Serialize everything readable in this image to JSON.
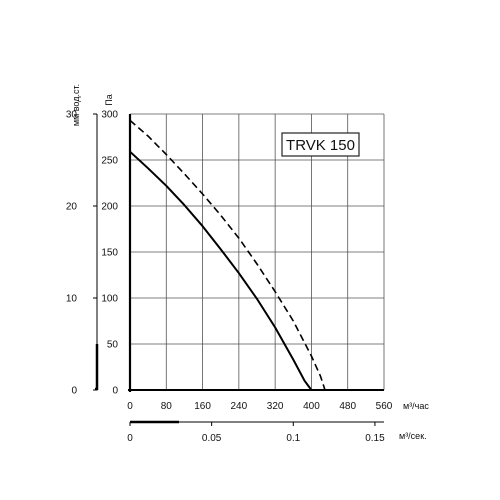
{
  "chart_data": {
    "type": "line",
    "model_label": "TRVK 150",
    "x_axis_primary": {
      "unit": "м³/час",
      "ticks": [
        "0",
        "80",
        "160",
        "240",
        "320",
        "400",
        "480",
        "560"
      ],
      "range": [
        0,
        560
      ]
    },
    "x_axis_secondary": {
      "unit": "м³/сек.",
      "ticks": [
        "0",
        "0.05",
        "0.1",
        "0.15"
      ],
      "values": [
        0,
        0.05,
        0.1,
        0.15
      ]
    },
    "y_axis_primary": {
      "unit": "Па",
      "ticks": [
        "0",
        "50",
        "100",
        "150",
        "200",
        "250",
        "300"
      ],
      "range": [
        0,
        300
      ]
    },
    "y_axis_secondary": {
      "unit": "мм вод.ст.",
      "ticks": [
        "0",
        "10",
        "20",
        "30"
      ],
      "values": [
        0,
        10,
        20,
        30
      ]
    },
    "grid": true,
    "series": [
      {
        "style": "solid",
        "x": [
          0,
          40,
          80,
          120,
          160,
          200,
          240,
          280,
          320,
          360,
          385,
          400
        ],
        "y": [
          259,
          241,
          222,
          201,
          178,
          153,
          127,
          99,
          68,
          33,
          10,
          0
        ]
      },
      {
        "style": "dashed",
        "x": [
          0,
          40,
          80,
          120,
          160,
          200,
          240,
          280,
          320,
          360,
          400,
          420,
          430
        ],
        "y": [
          293,
          276,
          256,
          235,
          213,
          190,
          165,
          137,
          107,
          75,
          37,
          15,
          0
        ]
      }
    ]
  }
}
